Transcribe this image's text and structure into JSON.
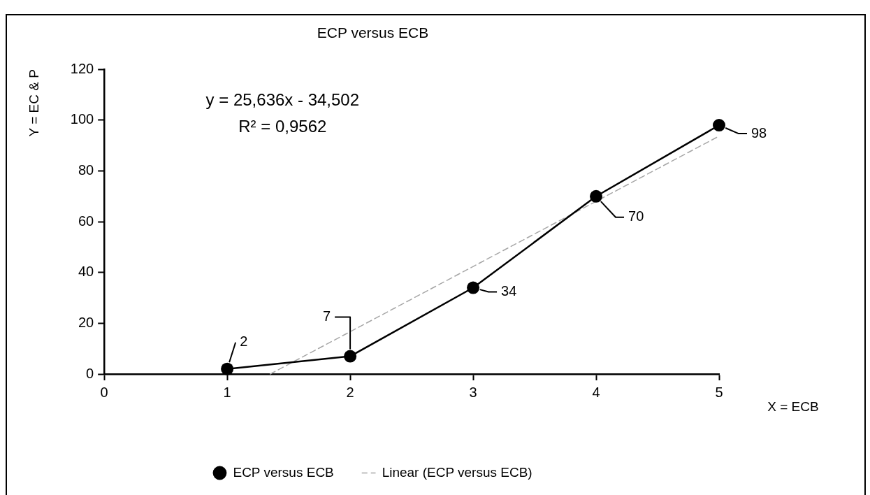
{
  "chart_data": {
    "type": "line",
    "title": "ECP versus ECB",
    "xlabel": "X = ECB",
    "ylabel": "Y = EC & P",
    "x": [
      1,
      2,
      3,
      4,
      5
    ],
    "series": [
      {
        "name": "ECP versus ECB",
        "color": "#000000",
        "values": [
          2,
          7,
          34,
          70,
          98
        ],
        "value_labels": [
          "2",
          "7",
          "34",
          "70",
          "98"
        ]
      },
      {
        "name": "Linear (ECP versus ECB)",
        "type": "line",
        "x": [
          1.35,
          5
        ],
        "values": [
          0,
          93.7
        ],
        "color": "#a6a6a6",
        "line_style": "dashed",
        "marker": "none"
      }
    ],
    "xlim": [
      0,
      5
    ],
    "xticks": [
      0,
      1,
      2,
      3,
      4,
      5
    ],
    "ylim": [
      0,
      120
    ],
    "yticks": [
      0,
      20,
      40,
      60,
      80,
      100,
      120
    ],
    "annotations": [
      "y = 25,636x - 34,502",
      "R² = 0,9562"
    ],
    "legend": "bottom",
    "grid": false,
    "marker": "circle",
    "line_style": "solid"
  }
}
